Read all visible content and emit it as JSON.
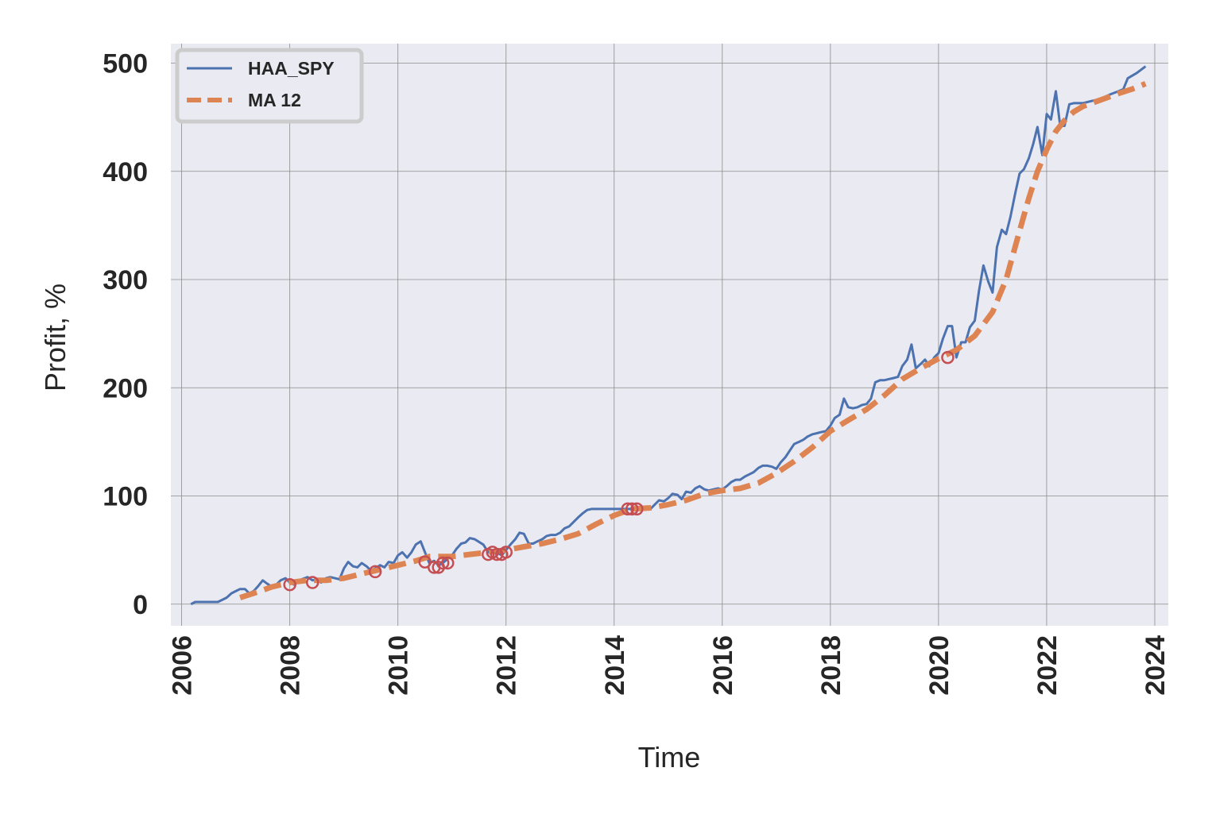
{
  "chart_data": {
    "type": "line",
    "title": "",
    "xlabel": "Time",
    "ylabel": "Profit, %",
    "xlim": [
      2005.8,
      2024.25
    ],
    "ylim": [
      -20,
      518
    ],
    "x_ticks": [
      "2006",
      "2008",
      "2010",
      "2012",
      "2014",
      "2016",
      "2018",
      "2020",
      "2022",
      "2024"
    ],
    "y_ticks": [
      "0",
      "100",
      "200",
      "300",
      "400",
      "500"
    ],
    "grid": true,
    "legend_position": "top-left",
    "colors": {
      "background": "#eaeaf2",
      "grid": "#8c8c8c",
      "haa_spy": "#4c72b0",
      "ma12": "#dd8452",
      "markers": "#c44e52"
    },
    "series": [
      {
        "name": "HAA_SPY",
        "style": "solid",
        "points": [
          [
            2006.17,
            0
          ],
          [
            2006.25,
            2
          ],
          [
            2006.5,
            2
          ],
          [
            2006.67,
            2
          ],
          [
            2006.83,
            6
          ],
          [
            2006.92,
            10
          ],
          [
            2007.0,
            12
          ],
          [
            2007.08,
            14
          ],
          [
            2007.17,
            14
          ],
          [
            2007.25,
            10
          ],
          [
            2007.33,
            12
          ],
          [
            2007.42,
            17
          ],
          [
            2007.5,
            22
          ],
          [
            2007.58,
            19
          ],
          [
            2007.67,
            16
          ],
          [
            2007.75,
            18
          ],
          [
            2007.83,
            22
          ],
          [
            2007.92,
            24
          ],
          [
            2008.0,
            20
          ],
          [
            2008.08,
            18
          ],
          [
            2008.17,
            22
          ],
          [
            2008.33,
            25
          ],
          [
            2008.42,
            22
          ],
          [
            2008.5,
            23
          ],
          [
            2008.58,
            20
          ],
          [
            2008.67,
            24
          ],
          [
            2008.75,
            25
          ],
          [
            2008.92,
            23
          ],
          [
            2009.0,
            33
          ],
          [
            2009.08,
            39
          ],
          [
            2009.17,
            35
          ],
          [
            2009.25,
            34
          ],
          [
            2009.33,
            38
          ],
          [
            2009.42,
            35
          ],
          [
            2009.5,
            31
          ],
          [
            2009.58,
            33
          ],
          [
            2009.67,
            36
          ],
          [
            2009.75,
            34
          ],
          [
            2009.83,
            39
          ],
          [
            2009.92,
            38
          ],
          [
            2010.0,
            45
          ],
          [
            2010.08,
            48
          ],
          [
            2010.17,
            43
          ],
          [
            2010.25,
            48
          ],
          [
            2010.33,
            55
          ],
          [
            2010.42,
            58
          ],
          [
            2010.5,
            48
          ],
          [
            2010.58,
            38
          ],
          [
            2010.67,
            40
          ],
          [
            2010.75,
            36
          ],
          [
            2010.83,
            38
          ],
          [
            2010.92,
            42
          ],
          [
            2011.0,
            45
          ],
          [
            2011.08,
            51
          ],
          [
            2011.17,
            56
          ],
          [
            2011.25,
            57
          ],
          [
            2011.33,
            61
          ],
          [
            2011.42,
            60
          ],
          [
            2011.58,
            55
          ],
          [
            2011.67,
            48
          ],
          [
            2011.75,
            50
          ],
          [
            2011.83,
            48
          ],
          [
            2011.92,
            45
          ],
          [
            2012.0,
            50
          ],
          [
            2012.08,
            55
          ],
          [
            2012.17,
            60
          ],
          [
            2012.25,
            66
          ],
          [
            2012.33,
            65
          ],
          [
            2012.42,
            56
          ],
          [
            2012.5,
            56
          ],
          [
            2012.58,
            58
          ],
          [
            2012.67,
            60
          ],
          [
            2012.75,
            63
          ],
          [
            2012.83,
            64
          ],
          [
            2012.92,
            64
          ],
          [
            2013.0,
            66
          ],
          [
            2013.08,
            70
          ],
          [
            2013.17,
            72
          ],
          [
            2013.25,
            76
          ],
          [
            2013.33,
            80
          ],
          [
            2013.42,
            84
          ],
          [
            2013.5,
            87
          ],
          [
            2013.58,
            88
          ],
          [
            2013.75,
            88
          ],
          [
            2014.0,
            88
          ],
          [
            2014.25,
            88
          ],
          [
            2014.5,
            88
          ],
          [
            2014.67,
            88
          ],
          [
            2014.75,
            92
          ],
          [
            2014.83,
            96
          ],
          [
            2014.92,
            95
          ],
          [
            2015.0,
            98
          ],
          [
            2015.08,
            102
          ],
          [
            2015.17,
            101
          ],
          [
            2015.25,
            97
          ],
          [
            2015.33,
            104
          ],
          [
            2015.42,
            103
          ],
          [
            2015.5,
            107
          ],
          [
            2015.58,
            109
          ],
          [
            2015.67,
            106
          ],
          [
            2015.75,
            105
          ],
          [
            2015.83,
            106
          ],
          [
            2015.92,
            107
          ],
          [
            2016.0,
            106
          ],
          [
            2016.08,
            109
          ],
          [
            2016.17,
            113
          ],
          [
            2016.25,
            115
          ],
          [
            2016.33,
            115
          ],
          [
            2016.42,
            118
          ],
          [
            2016.5,
            120
          ],
          [
            2016.58,
            122
          ],
          [
            2016.67,
            126
          ],
          [
            2016.75,
            128
          ],
          [
            2016.83,
            128
          ],
          [
            2016.92,
            127
          ],
          [
            2017.0,
            125
          ],
          [
            2017.08,
            131
          ],
          [
            2017.17,
            136
          ],
          [
            2017.25,
            142
          ],
          [
            2017.33,
            148
          ],
          [
            2017.42,
            150
          ],
          [
            2017.5,
            152
          ],
          [
            2017.58,
            155
          ],
          [
            2017.67,
            157
          ],
          [
            2017.75,
            158
          ],
          [
            2017.83,
            159
          ],
          [
            2017.92,
            160
          ],
          [
            2018.0,
            165
          ],
          [
            2018.08,
            172
          ],
          [
            2018.17,
            175
          ],
          [
            2018.25,
            190
          ],
          [
            2018.33,
            182
          ],
          [
            2018.42,
            181
          ],
          [
            2018.5,
            182
          ],
          [
            2018.58,
            184
          ],
          [
            2018.67,
            185
          ],
          [
            2018.75,
            190
          ],
          [
            2018.83,
            205
          ],
          [
            2018.92,
            207
          ],
          [
            2019.0,
            207
          ],
          [
            2019.08,
            208
          ],
          [
            2019.17,
            209
          ],
          [
            2019.25,
            210
          ],
          [
            2019.33,
            220
          ],
          [
            2019.42,
            226
          ],
          [
            2019.5,
            240
          ],
          [
            2019.58,
            218
          ],
          [
            2019.67,
            222
          ],
          [
            2019.75,
            226
          ],
          [
            2019.83,
            220
          ],
          [
            2019.92,
            228
          ],
          [
            2020.0,
            232
          ],
          [
            2020.08,
            245
          ],
          [
            2020.17,
            257
          ],
          [
            2020.25,
            257
          ],
          [
            2020.33,
            228
          ],
          [
            2020.42,
            242
          ],
          [
            2020.5,
            242
          ],
          [
            2020.58,
            256
          ],
          [
            2020.67,
            262
          ],
          [
            2020.75,
            290
          ],
          [
            2020.83,
            313
          ],
          [
            2020.92,
            298
          ],
          [
            2021.0,
            288
          ],
          [
            2021.08,
            330
          ],
          [
            2021.17,
            346
          ],
          [
            2021.25,
            342
          ],
          [
            2021.33,
            358
          ],
          [
            2021.42,
            380
          ],
          [
            2021.5,
            398
          ],
          [
            2021.58,
            402
          ],
          [
            2021.67,
            412
          ],
          [
            2021.75,
            425
          ],
          [
            2021.83,
            441
          ],
          [
            2021.92,
            415
          ],
          [
            2022.0,
            453
          ],
          [
            2022.08,
            448
          ],
          [
            2022.17,
            474
          ],
          [
            2022.25,
            442
          ],
          [
            2022.33,
            442
          ],
          [
            2022.42,
            462
          ],
          [
            2022.5,
            463
          ],
          [
            2022.67,
            463
          ],
          [
            2022.83,
            465
          ],
          [
            2023.0,
            467
          ],
          [
            2023.17,
            471
          ],
          [
            2023.33,
            474
          ],
          [
            2023.42,
            476
          ],
          [
            2023.5,
            486
          ],
          [
            2023.67,
            491
          ],
          [
            2023.83,
            497
          ]
        ]
      },
      {
        "name": "MA 12",
        "style": "dashed",
        "points": [
          [
            2007.08,
            6
          ],
          [
            2007.33,
            10
          ],
          [
            2007.67,
            16
          ],
          [
            2008.0,
            20
          ],
          [
            2008.33,
            22
          ],
          [
            2008.67,
            22
          ],
          [
            2009.0,
            24
          ],
          [
            2009.33,
            28
          ],
          [
            2009.67,
            32
          ],
          [
            2010.0,
            36
          ],
          [
            2010.33,
            40
          ],
          [
            2010.58,
            44
          ],
          [
            2010.83,
            44
          ],
          [
            2011.0,
            44
          ],
          [
            2011.33,
            46
          ],
          [
            2011.67,
            48
          ],
          [
            2012.0,
            50
          ],
          [
            2012.33,
            53
          ],
          [
            2012.67,
            56
          ],
          [
            2013.0,
            60
          ],
          [
            2013.33,
            65
          ],
          [
            2013.67,
            74
          ],
          [
            2014.0,
            82
          ],
          [
            2014.33,
            88
          ],
          [
            2014.67,
            89
          ],
          [
            2015.0,
            92
          ],
          [
            2015.33,
            96
          ],
          [
            2015.67,
            102
          ],
          [
            2016.0,
            105
          ],
          [
            2016.33,
            107
          ],
          [
            2016.67,
            112
          ],
          [
            2017.0,
            121
          ],
          [
            2017.33,
            132
          ],
          [
            2017.67,
            145
          ],
          [
            2018.0,
            160
          ],
          [
            2018.33,
            170
          ],
          [
            2018.67,
            180
          ],
          [
            2019.0,
            193
          ],
          [
            2019.33,
            208
          ],
          [
            2019.67,
            218
          ],
          [
            2020.0,
            227
          ],
          [
            2020.33,
            235
          ],
          [
            2020.67,
            248
          ],
          [
            2021.0,
            270
          ],
          [
            2021.25,
            300
          ],
          [
            2021.5,
            345
          ],
          [
            2021.67,
            375
          ],
          [
            2021.83,
            400
          ],
          [
            2022.0,
            420
          ],
          [
            2022.17,
            437
          ],
          [
            2022.33,
            447
          ],
          [
            2022.5,
            455
          ],
          [
            2022.67,
            460
          ],
          [
            2023.0,
            466
          ],
          [
            2023.33,
            472
          ],
          [
            2023.58,
            476
          ],
          [
            2023.83,
            481
          ]
        ]
      }
    ],
    "markers": [
      [
        2008.0,
        18
      ],
      [
        2008.42,
        20
      ],
      [
        2009.58,
        30
      ],
      [
        2010.5,
        39
      ],
      [
        2010.67,
        34
      ],
      [
        2010.75,
        34
      ],
      [
        2010.83,
        38
      ],
      [
        2010.92,
        38
      ],
      [
        2011.67,
        46
      ],
      [
        2011.75,
        48
      ],
      [
        2011.83,
        46
      ],
      [
        2011.92,
        46
      ],
      [
        2012.0,
        48
      ],
      [
        2014.25,
        88
      ],
      [
        2014.33,
        88
      ],
      [
        2014.42,
        88
      ],
      [
        2020.17,
        228
      ]
    ]
  }
}
